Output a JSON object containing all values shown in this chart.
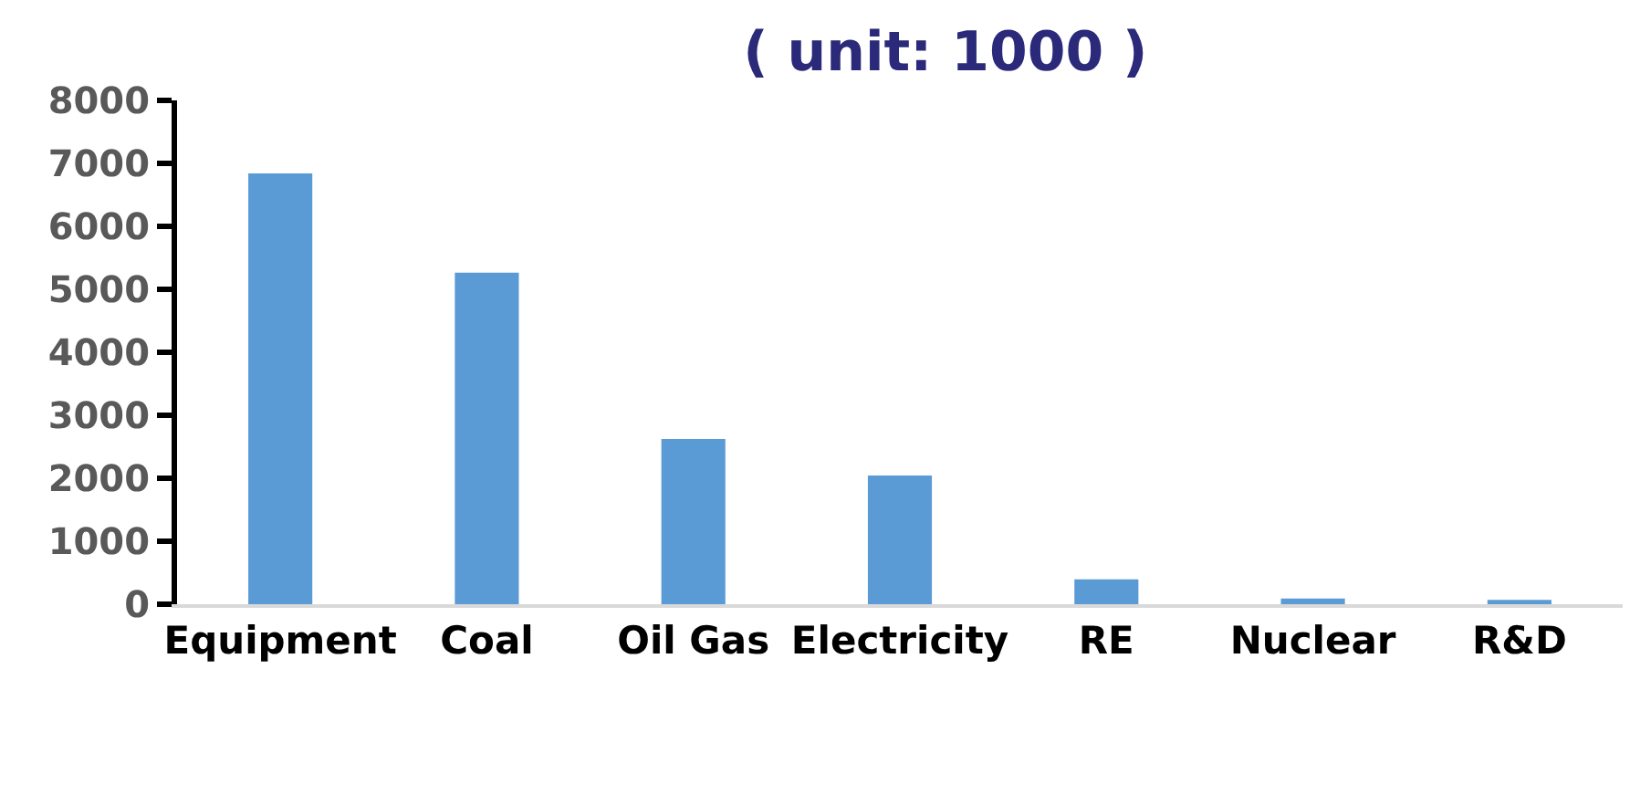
{
  "chart_data": {
    "type": "bar",
    "title": "( unit: 1000 )",
    "categories": [
      "Equipment",
      "Coal",
      "Oil Gas",
      "Electricity",
      "RE",
      "Nuclear",
      "R&D"
    ],
    "values": [
      6840,
      5265,
      2625,
      2045,
      395,
      90,
      70
    ],
    "color": "#5b9bd5",
    "ylim": [
      0,
      8000
    ],
    "yticks": [
      0,
      1000,
      2000,
      3000,
      4000,
      5000,
      6000,
      7000,
      8000
    ],
    "grid": false
  }
}
